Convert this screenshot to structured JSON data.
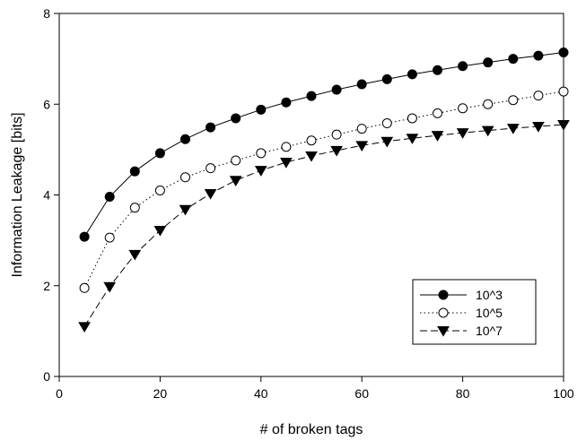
{
  "chart_data": {
    "type": "line",
    "xlabel": "# of broken tags",
    "ylabel": "Information Leakage [bits]",
    "xlim": [
      0,
      100
    ],
    "ylim": [
      0,
      8
    ],
    "xticks": [
      0,
      20,
      40,
      60,
      80,
      100
    ],
    "yticks": [
      0,
      2,
      4,
      6,
      8
    ],
    "grid": false,
    "legend_position": "bottom-right",
    "x": [
      5,
      10,
      15,
      20,
      25,
      30,
      35,
      40,
      45,
      50,
      55,
      60,
      65,
      70,
      75,
      80,
      85,
      90,
      95,
      100
    ],
    "series": [
      {
        "name": "10^3",
        "marker": "filled-circle",
        "line_style": "solid",
        "values": [
          3.08,
          3.96,
          4.52,
          4.92,
          5.23,
          5.49,
          5.69,
          5.88,
          6.04,
          6.18,
          6.32,
          6.44,
          6.55,
          6.66,
          6.75,
          6.84,
          6.92,
          7.0,
          7.07,
          7.14
        ]
      },
      {
        "name": "10^5",
        "marker": "open-circle",
        "line_style": "dotted",
        "values": [
          1.95,
          3.06,
          3.72,
          4.1,
          4.39,
          4.59,
          4.76,
          4.92,
          5.06,
          5.2,
          5.33,
          5.46,
          5.58,
          5.69,
          5.8,
          5.91,
          6.0,
          6.09,
          6.19,
          6.28
        ]
      },
      {
        "name": "10^7",
        "marker": "filled-triangle-down",
        "line_style": "dashed",
        "values": [
          1.1,
          1.98,
          2.69,
          3.22,
          3.68,
          4.03,
          4.32,
          4.54,
          4.72,
          4.86,
          4.98,
          5.09,
          5.18,
          5.25,
          5.31,
          5.37,
          5.42,
          5.47,
          5.51,
          5.55
        ]
      }
    ]
  }
}
